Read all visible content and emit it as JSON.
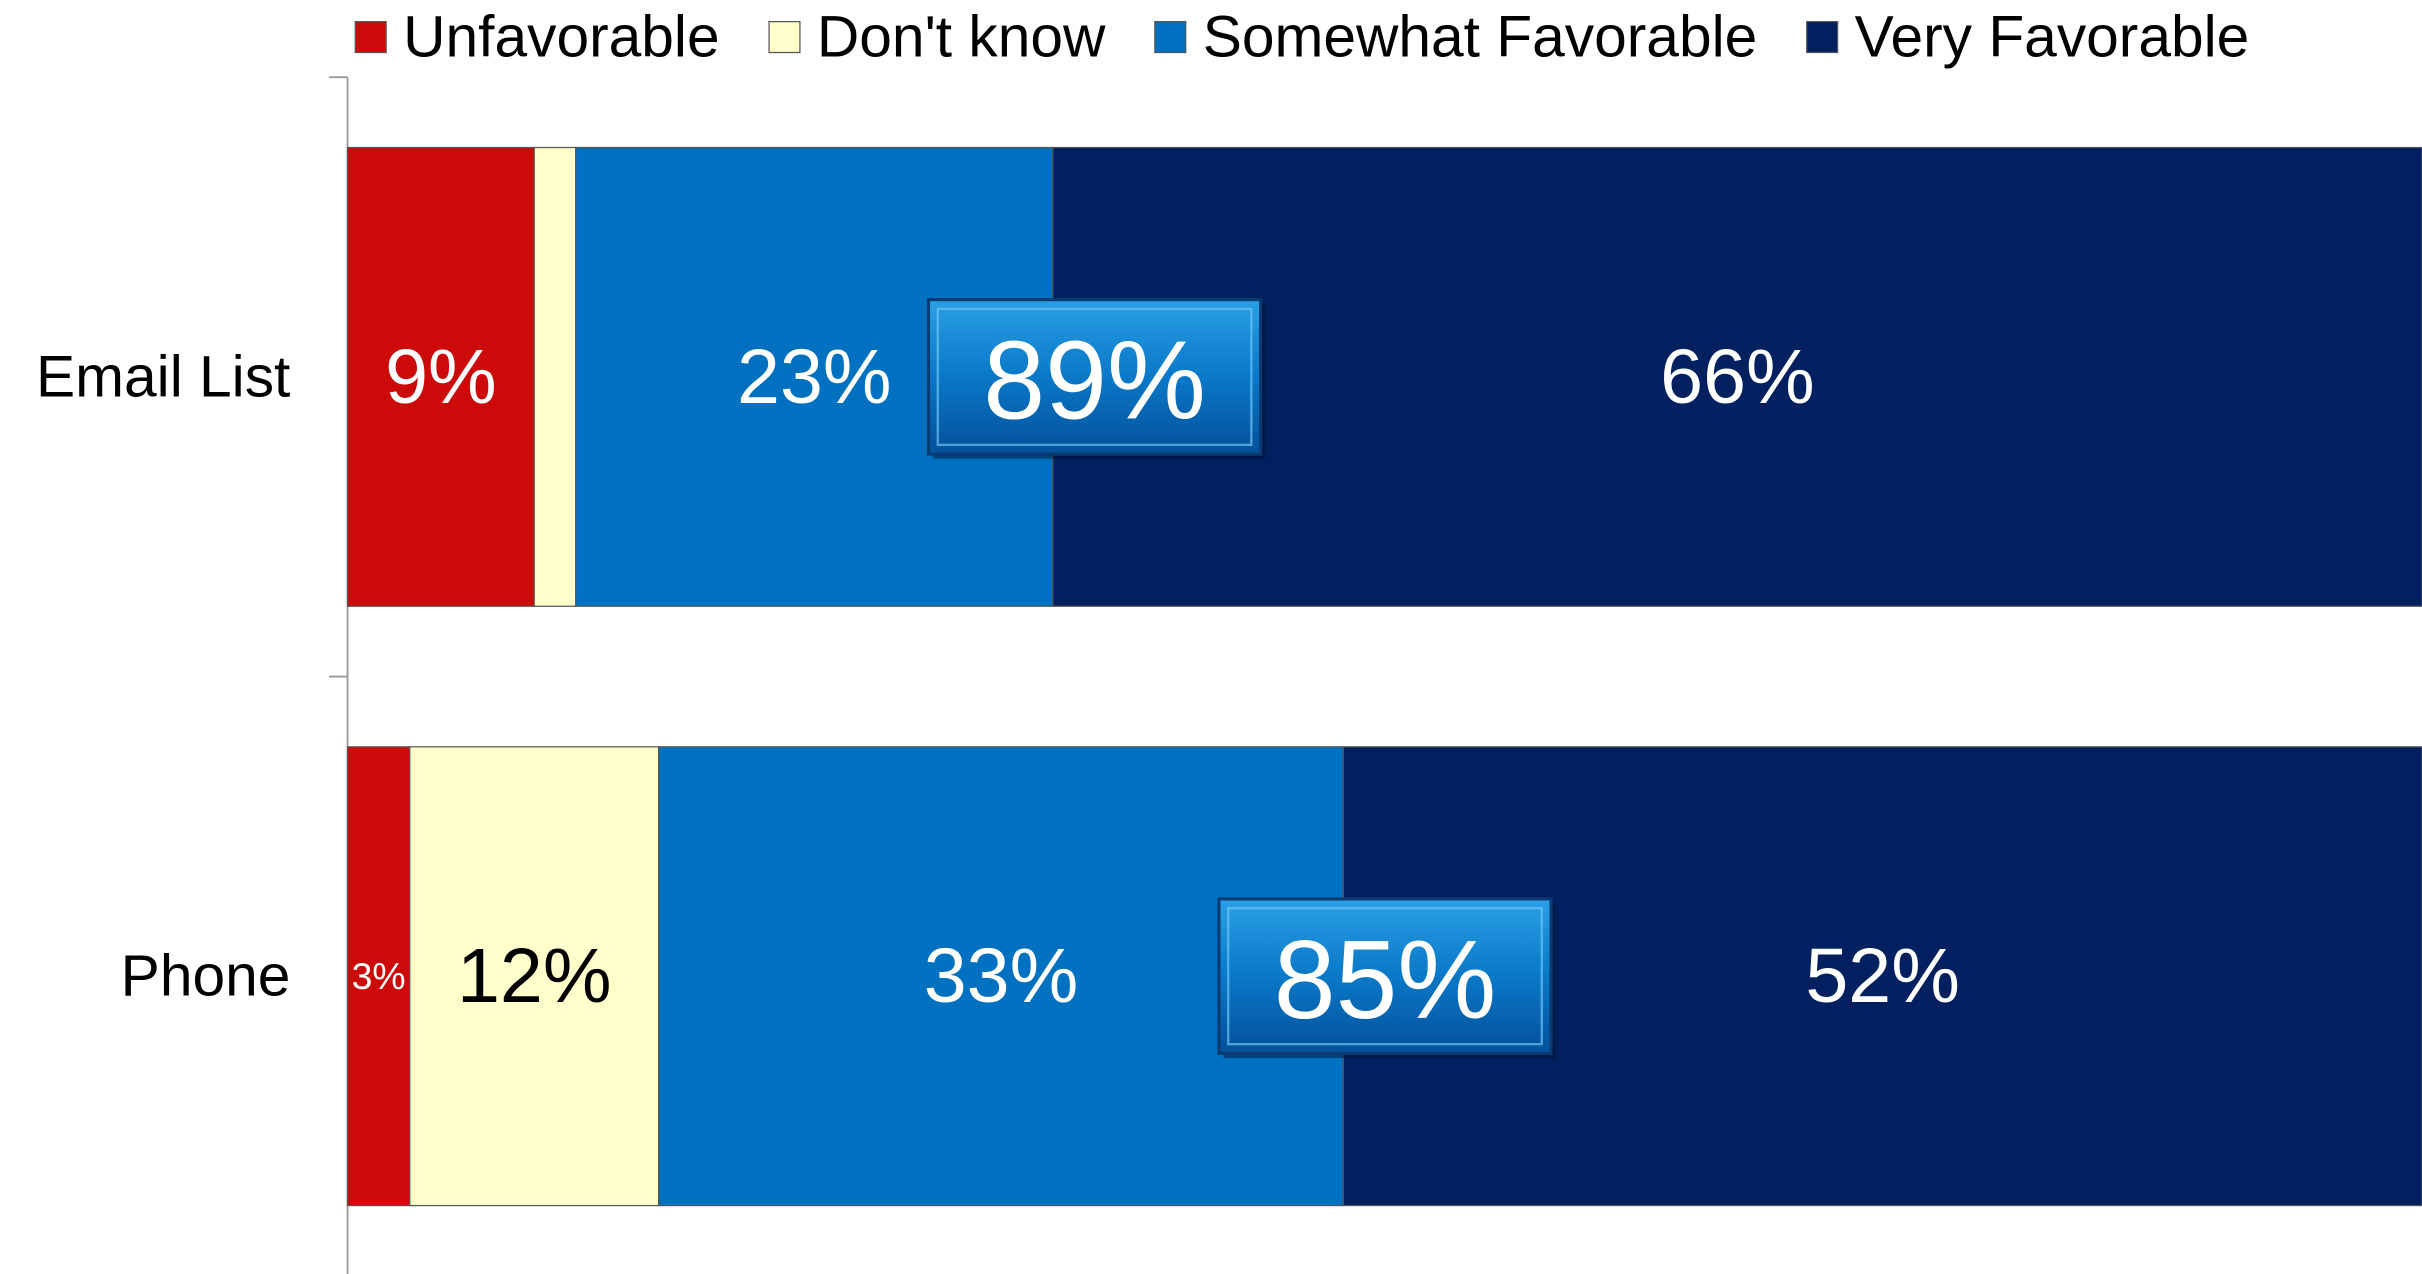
{
  "chart_data": {
    "type": "stacked-bar-horizontal",
    "categories": [
      "Email List",
      "Phone"
    ],
    "series": [
      {
        "name": "Unfavorable",
        "color": "#cc0a0a",
        "label_color": "#ffffff",
        "values": [
          9,
          3
        ],
        "value_labels": [
          "9%",
          "3%"
        ]
      },
      {
        "name": "Don't know",
        "color": "#ffffcc",
        "label_color": "#000000",
        "values": [
          2,
          12
        ],
        "value_labels": [
          null,
          "12%"
        ]
      },
      {
        "name": "Somewhat Favorable",
        "color": "#0070c0",
        "label_color": "#ffffff",
        "values": [
          23,
          33
        ],
        "value_labels": [
          "23%",
          "33%"
        ]
      },
      {
        "name": "Very Favorable",
        "color": "#002060",
        "label_color": "#ffffff",
        "values": [
          66,
          52
        ],
        "value_labels": [
          "66%",
          "52%"
        ]
      }
    ],
    "annotations": [
      "89%",
      "85%"
    ],
    "xlim": [
      0,
      100
    ],
    "legend": "top"
  }
}
